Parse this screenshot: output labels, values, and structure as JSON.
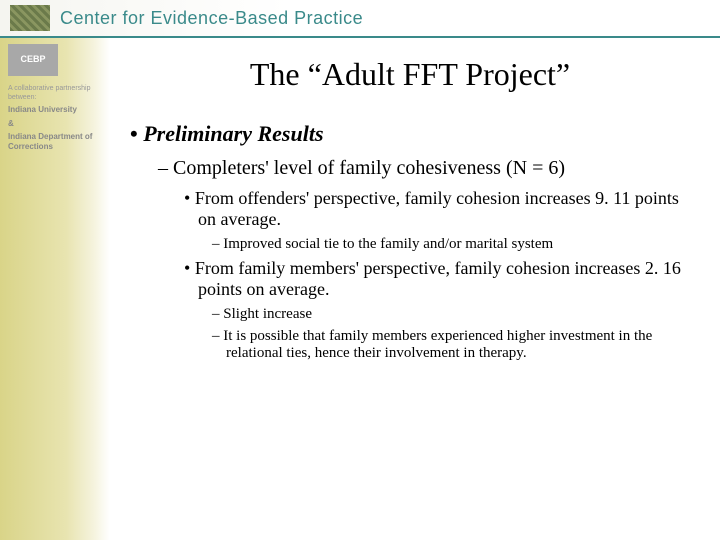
{
  "header": {
    "org_title": "Center for Evidence-Based Practice",
    "sidebar_logo": "CEBP",
    "sidebar_tagline": "A collaborative partnership between:",
    "sidebar_partner1": "Indiana University",
    "sidebar_amp": "&",
    "sidebar_partner2": "Indiana Department of Corrections"
  },
  "slide": {
    "title": "The “Adult FFT Project”",
    "l1_heading": "Preliminary Results",
    "l2_sub": "Completers' level of family cohesiveness (N = 6)",
    "bullet1": "From offenders' perspective, family cohesion increases 9. 11 points on average.",
    "bullet1_sub1": "Improved social tie to the family and/or marital system",
    "bullet2": "From family members' perspective, family cohesion increases 2. 16 points on average.",
    "bullet2_sub1": "Slight increase",
    "bullet2_sub2": "It is possible that family members experienced higher investment in the relational ties, hence their involvement in therapy."
  },
  "colors": {
    "teal": "#3a8a8a",
    "sidebar_gradient_start": "#d9d488",
    "sidebar_gradient_end": "#ffffff",
    "text": "#000000"
  }
}
